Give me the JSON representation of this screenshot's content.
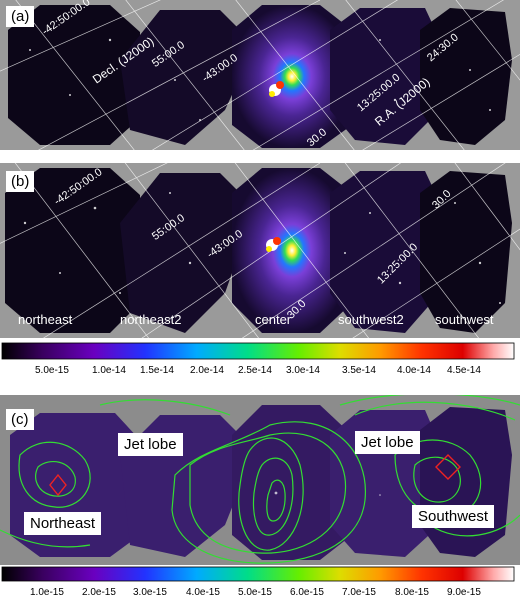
{
  "panels": {
    "a": {
      "tag": "(a)",
      "coords": [
        "-42:50:00.0",
        "55:00.0",
        "-43:00.0",
        "Decl. (J2000)",
        "13:25:00.0",
        "R.A. (J2000)",
        "24:30.0",
        "30.0"
      ]
    },
    "b": {
      "tag": "(b)",
      "coords": [
        "-42:50:00.0",
        "55:00.0",
        "-43:00.0",
        "13:25:00.0",
        "30.0",
        "30.0"
      ],
      "fields": [
        "northeast",
        "northeast2",
        "center",
        "southwest2",
        "southwest"
      ]
    },
    "c": {
      "tag": "(c)",
      "labels": {
        "jet_lobe_left": "Jet lobe",
        "jet_lobe_right": "Jet lobe",
        "northeast": "Northeast",
        "southwest": "Southwest"
      }
    }
  },
  "colorbars": {
    "top": {
      "ticks": [
        "5.0e-15",
        "1.0e-14",
        "1.5e-14",
        "2.0e-14",
        "2.5e-14",
        "3.0e-14",
        "3.5e-14",
        "4.0e-14",
        "4.5e-14"
      ]
    },
    "bottom": {
      "ticks": [
        "1.0e-15",
        "2.0e-15",
        "3.0e-15",
        "4.0e-15",
        "5.0e-15",
        "6.0e-15",
        "7.0e-15",
        "8.0e-15",
        "9.0e-15"
      ]
    }
  },
  "colors": {
    "background_gray": "#9a9a9a",
    "sky_dark": "#0c0618",
    "sky_purple": "#3a1f6e",
    "contour_green": "#33dd33",
    "region_red": "#ee2222"
  }
}
